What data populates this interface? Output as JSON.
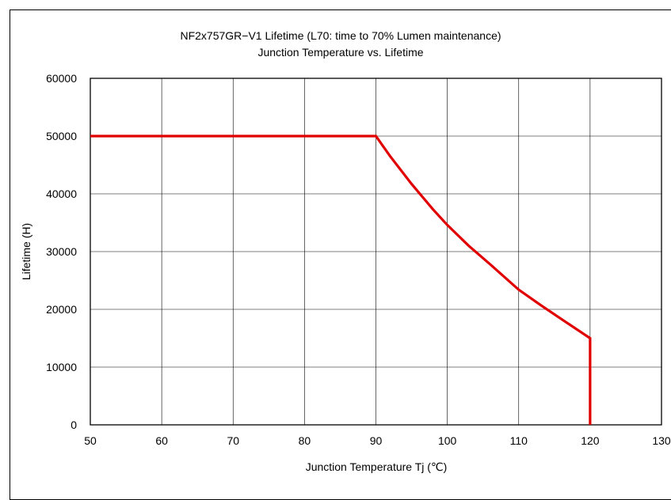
{
  "chart_data": {
    "type": "line",
    "title": "NF2x757GR−V1 Lifetime (L70: time to 70% Lumen maintenance)",
    "subtitle": "Junction Temperature vs. Lifetime",
    "xlabel": "Junction Temperature Tj (℃)",
    "ylabel": "Lifetime (H)",
    "xlim": [
      50,
      130
    ],
    "ylim": [
      0,
      60000
    ],
    "x_ticks": [
      "50",
      "60",
      "70",
      "80",
      "90",
      "100",
      "110",
      "120",
      "130"
    ],
    "y_ticks": [
      "0",
      "10000",
      "20000",
      "30000",
      "40000",
      "50000",
      "60000"
    ],
    "grid": true,
    "series": [
      {
        "color": "#e00000",
        "x": [
          50,
          90,
          92,
          95,
          98,
          100,
          103,
          106,
          110,
          113,
          116,
          120,
          120
        ],
        "y": [
          50000,
          50000,
          46500,
          41700,
          37300,
          34600,
          31000,
          27800,
          23400,
          20800,
          18300,
          15000,
          0
        ]
      }
    ]
  }
}
